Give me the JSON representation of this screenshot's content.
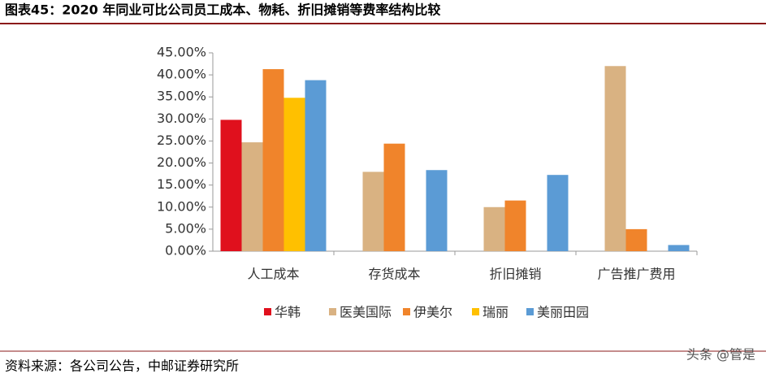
{
  "chart_data": {
    "type": "bar",
    "title": "图表45：2020 年同业可比公司员工成本、物耗、折旧摊销等费率结构比较",
    "categories": [
      "人工成本",
      "存货成本",
      "折旧摊销",
      "广告推广费用"
    ],
    "series": [
      {
        "name": "华韩",
        "color": "#e0101d",
        "values": [
          29.8,
          null,
          null,
          null
        ]
      },
      {
        "name": "医美国际",
        "color": "#d9b282",
        "values": [
          24.7,
          18.0,
          10.0,
          42.0
        ]
      },
      {
        "name": "伊美尔",
        "color": "#f0842b",
        "values": [
          41.3,
          24.4,
          11.5,
          5.0
        ]
      },
      {
        "name": "瑞丽",
        "color": "#ffc000",
        "values": [
          34.8,
          null,
          null,
          null
        ]
      },
      {
        "name": "美丽田园",
        "color": "#5b9bd5",
        "values": [
          38.8,
          18.4,
          17.3,
          1.4
        ]
      }
    ],
    "ylim": [
      0,
      45
    ],
    "yticks": [
      {
        "value": 0,
        "label": "0.00%"
      },
      {
        "value": 5,
        "label": "5.00%"
      },
      {
        "value": 10,
        "label": "10.00%"
      },
      {
        "value": 15,
        "label": "15.00%"
      },
      {
        "value": 20,
        "label": "20.00%"
      },
      {
        "value": 25,
        "label": "25.00%"
      },
      {
        "value": 30,
        "label": "30.00%"
      },
      {
        "value": 35,
        "label": "35.00%"
      },
      {
        "value": 40,
        "label": "40.00%"
      },
      {
        "value": 45,
        "label": "45.00%"
      }
    ],
    "legend": "bottom",
    "source": "资料来源：各公司公告，中邮证券研究所",
    "watermark": "头条 @管是"
  }
}
